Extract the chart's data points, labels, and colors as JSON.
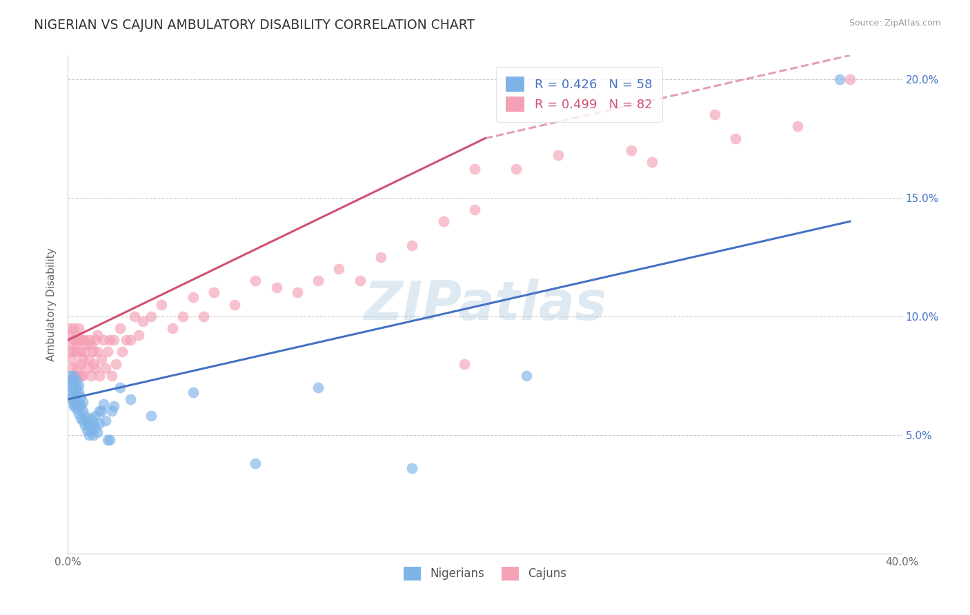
{
  "title": "NIGERIAN VS CAJUN AMBULATORY DISABILITY CORRELATION CHART",
  "source": "Source: ZipAtlas.com",
  "ylabel": "Ambulatory Disability",
  "xlabel_nigerians": "Nigerians",
  "xlabel_cajuns": "Cajuns",
  "xmin": 0.0,
  "xmax": 0.4,
  "ymin": 0.0,
  "ymax": 0.21,
  "nigerian_R": 0.426,
  "nigerian_N": 58,
  "cajun_R": 0.499,
  "cajun_N": 82,
  "nigerian_color": "#7EB3E8",
  "cajun_color": "#F4A0B5",
  "nigerian_line_color": "#4472C4",
  "cajun_line_color": "#D05070",
  "watermark_text": "ZIPatlas",
  "nigerian_line": {
    "x0": 0.0,
    "y0": 0.065,
    "x1": 0.375,
    "y1": 0.14
  },
  "cajun_line_solid": {
    "x0": 0.0,
    "y0": 0.09,
    "x1": 0.2,
    "y1": 0.175
  },
  "cajun_line_dash": {
    "x0": 0.2,
    "y0": 0.175,
    "x1": 0.375,
    "y1": 0.21
  },
  "nigerian_pts_x": [
    0.001,
    0.001,
    0.001,
    0.002,
    0.002,
    0.002,
    0.002,
    0.003,
    0.003,
    0.003,
    0.003,
    0.003,
    0.004,
    0.004,
    0.004,
    0.004,
    0.004,
    0.005,
    0.005,
    0.005,
    0.005,
    0.006,
    0.006,
    0.006,
    0.007,
    0.007,
    0.007,
    0.008,
    0.008,
    0.009,
    0.009,
    0.01,
    0.01,
    0.011,
    0.011,
    0.012,
    0.012,
    0.013,
    0.013,
    0.014,
    0.015,
    0.015,
    0.016,
    0.017,
    0.018,
    0.019,
    0.02,
    0.021,
    0.022,
    0.025,
    0.03,
    0.04,
    0.06,
    0.09,
    0.12,
    0.165,
    0.22,
    0.37
  ],
  "nigerian_pts_y": [
    0.075,
    0.072,
    0.068,
    0.066,
    0.07,
    0.073,
    0.065,
    0.063,
    0.069,
    0.072,
    0.062,
    0.075,
    0.061,
    0.067,
    0.07,
    0.064,
    0.073,
    0.059,
    0.063,
    0.068,
    0.071,
    0.057,
    0.062,
    0.066,
    0.056,
    0.06,
    0.064,
    0.054,
    0.058,
    0.052,
    0.056,
    0.05,
    0.054,
    0.052,
    0.057,
    0.05,
    0.055,
    0.053,
    0.058,
    0.051,
    0.055,
    0.06,
    0.06,
    0.063,
    0.056,
    0.048,
    0.048,
    0.06,
    0.062,
    0.07,
    0.065,
    0.058,
    0.068,
    0.038,
    0.07,
    0.036,
    0.075,
    0.2
  ],
  "cajun_pts_x": [
    0.001,
    0.001,
    0.001,
    0.002,
    0.002,
    0.002,
    0.003,
    0.003,
    0.003,
    0.003,
    0.004,
    0.004,
    0.004,
    0.004,
    0.005,
    0.005,
    0.005,
    0.006,
    0.006,
    0.006,
    0.006,
    0.007,
    0.007,
    0.007,
    0.008,
    0.008,
    0.009,
    0.009,
    0.01,
    0.01,
    0.011,
    0.011,
    0.012,
    0.012,
    0.013,
    0.013,
    0.014,
    0.014,
    0.015,
    0.016,
    0.017,
    0.018,
    0.019,
    0.02,
    0.021,
    0.022,
    0.023,
    0.025,
    0.026,
    0.028,
    0.03,
    0.032,
    0.034,
    0.036,
    0.04,
    0.045,
    0.05,
    0.055,
    0.06,
    0.065,
    0.07,
    0.08,
    0.09,
    0.1,
    0.11,
    0.12,
    0.13,
    0.14,
    0.15,
    0.165,
    0.18,
    0.195,
    0.195,
    0.215,
    0.235,
    0.27,
    0.28,
    0.31,
    0.32,
    0.35,
    0.375,
    0.19
  ],
  "cajun_pts_y": [
    0.092,
    0.085,
    0.095,
    0.082,
    0.088,
    0.078,
    0.09,
    0.085,
    0.095,
    0.075,
    0.088,
    0.092,
    0.078,
    0.085,
    0.09,
    0.075,
    0.095,
    0.08,
    0.085,
    0.09,
    0.075,
    0.082,
    0.09,
    0.075,
    0.085,
    0.09,
    0.078,
    0.088,
    0.082,
    0.09,
    0.075,
    0.088,
    0.08,
    0.085,
    0.09,
    0.078,
    0.085,
    0.092,
    0.075,
    0.082,
    0.09,
    0.078,
    0.085,
    0.09,
    0.075,
    0.09,
    0.08,
    0.095,
    0.085,
    0.09,
    0.09,
    0.1,
    0.092,
    0.098,
    0.1,
    0.105,
    0.095,
    0.1,
    0.108,
    0.1,
    0.11,
    0.105,
    0.115,
    0.112,
    0.11,
    0.115,
    0.12,
    0.115,
    0.125,
    0.13,
    0.14,
    0.145,
    0.162,
    0.162,
    0.168,
    0.17,
    0.165,
    0.185,
    0.175,
    0.18,
    0.2,
    0.08
  ]
}
